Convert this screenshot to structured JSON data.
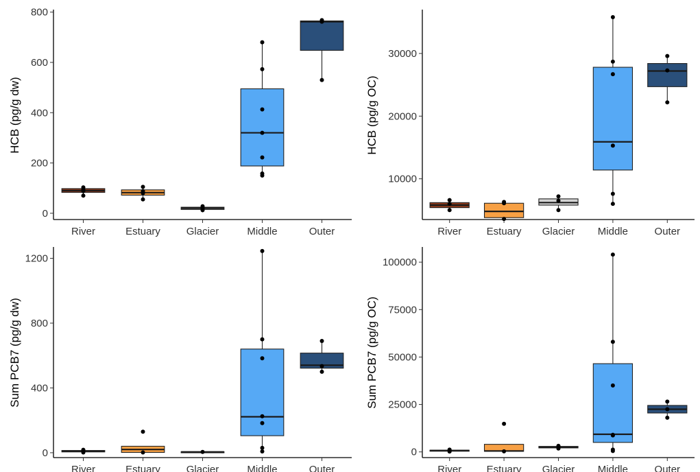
{
  "colors": {
    "River": "#8b3a1c",
    "Estuary": "#f7a044",
    "Glacier": "#d3d3d3",
    "Middle": "#56a9f5",
    "Outer": "#2a4f7a"
  },
  "chart_data": [
    {
      "type": "boxplot",
      "ylabel": "HCB (pg/g dw)",
      "ylim": [
        -25,
        810
      ],
      "yticks": [
        0,
        200,
        400,
        600,
        800
      ],
      "categories": [
        "River",
        "Estuary",
        "Glacier",
        "Middle",
        "Outer"
      ],
      "boxes": [
        {
          "category": "River",
          "min": 70,
          "q1": 83,
          "median": 90,
          "q3": 98,
          "max": 103,
          "points": [
            70,
            88,
            95,
            103
          ]
        },
        {
          "category": "Estuary",
          "min": 55,
          "q1": 72,
          "median": 82,
          "q3": 93,
          "max": 105,
          "points": [
            55,
            80,
            88,
            105
          ]
        },
        {
          "category": "Glacier",
          "min": 12,
          "q1": 15,
          "median": 20,
          "q3": 24,
          "max": 28,
          "points": [
            12,
            18,
            22,
            28
          ]
        },
        {
          "category": "Middle",
          "min": 150,
          "q1": 188,
          "median": 320,
          "q3": 495,
          "max": 680,
          "points": [
            150,
            158,
            222,
            320,
            413,
            573,
            680
          ]
        },
        {
          "category": "Outer",
          "min": 530,
          "q1": 648,
          "median": 762,
          "q3": 765,
          "max": 770,
          "points": [
            530,
            762,
            768
          ]
        }
      ]
    },
    {
      "type": "boxplot",
      "ylabel": "HCB (pg/g OC)",
      "ylim": [
        3500,
        37000
      ],
      "yticks": [
        10000,
        20000,
        30000
      ],
      "categories": [
        "River",
        "Estuary",
        "Glacier",
        "Middle",
        "Outer"
      ],
      "boxes": [
        {
          "category": "River",
          "min": 5000,
          "q1": 5400,
          "median": 5800,
          "q3": 6200,
          "max": 6600,
          "points": [
            5000,
            6000,
            6600
          ]
        },
        {
          "category": "Estuary",
          "min": 3600,
          "q1": 3800,
          "median": 4800,
          "q3": 6100,
          "max": 6300,
          "points": [
            3600,
            6100,
            6300
          ]
        },
        {
          "category": "Glacier",
          "min": 5000,
          "q1": 5800,
          "median": 6200,
          "q3": 6800,
          "max": 7200,
          "points": [
            5000,
            6500,
            7200
          ]
        },
        {
          "category": "Middle",
          "min": 6000,
          "q1": 11400,
          "median": 15900,
          "q3": 27800,
          "max": 35800,
          "points": [
            6000,
            7600,
            15300,
            26700,
            28700,
            35800
          ]
        },
        {
          "category": "Outer",
          "min": 22200,
          "q1": 24700,
          "median": 27200,
          "q3": 28400,
          "max": 29600,
          "points": [
            22200,
            27300,
            29600
          ]
        }
      ]
    },
    {
      "type": "boxplot",
      "ylabel": "Sum PCB7 (pg/g dw)",
      "ylim": [
        -30,
        1270
      ],
      "yticks": [
        0,
        400,
        800,
        1200
      ],
      "categories": [
        "River",
        "Estuary",
        "Glacier",
        "Middle",
        "Outer"
      ],
      "boxes": [
        {
          "category": "River",
          "min": 2,
          "q1": 5,
          "median": 10,
          "q3": 14,
          "max": 18,
          "points": [
            2,
            10,
            18
          ]
        },
        {
          "category": "Estuary",
          "min": 2,
          "q1": 2,
          "median": 20,
          "q3": 40,
          "max": 40,
          "points": [
            2,
            130
          ]
        },
        {
          "category": "Glacier",
          "min": 3,
          "q1": 4,
          "median": 5,
          "q3": 6,
          "max": 7,
          "points": [
            5
          ]
        },
        {
          "category": "Middle",
          "min": 8,
          "q1": 105,
          "median": 222,
          "q3": 640,
          "max": 1245,
          "points": [
            8,
            30,
            183,
            225,
            583,
            700,
            1245
          ]
        },
        {
          "category": "Outer",
          "min": 500,
          "q1": 522,
          "median": 540,
          "q3": 615,
          "max": 690,
          "points": [
            500,
            535,
            690
          ]
        }
      ]
    },
    {
      "type": "boxplot",
      "ylabel": "Sum PCB7 (pg/g OC)",
      "ylim": [
        -3000,
        108000
      ],
      "yticks": [
        0,
        25000,
        50000,
        75000,
        100000
      ],
      "categories": [
        "River",
        "Estuary",
        "Glacier",
        "Middle",
        "Outer"
      ],
      "boxes": [
        {
          "category": "River",
          "min": 200,
          "q1": 400,
          "median": 700,
          "q3": 900,
          "max": 1200,
          "points": [
            200,
            700,
            1200
          ]
        },
        {
          "category": "Estuary",
          "min": 300,
          "q1": 300,
          "median": 500,
          "q3": 4000,
          "max": 4000,
          "points": [
            300,
            14800
          ]
        },
        {
          "category": "Glacier",
          "min": 1800,
          "q1": 2100,
          "median": 2500,
          "q3": 2900,
          "max": 3200,
          "points": [
            1800,
            2600,
            3200
          ]
        },
        {
          "category": "Middle",
          "min": 500,
          "q1": 5000,
          "median": 9300,
          "q3": 46500,
          "max": 104000,
          "points": [
            500,
            1200,
            8700,
            9000,
            35000,
            58000,
            104000
          ]
        },
        {
          "category": "Outer",
          "min": 18000,
          "q1": 20500,
          "median": 22500,
          "q3": 24500,
          "max": 26500,
          "points": [
            18000,
            22500,
            26500
          ]
        }
      ]
    }
  ]
}
